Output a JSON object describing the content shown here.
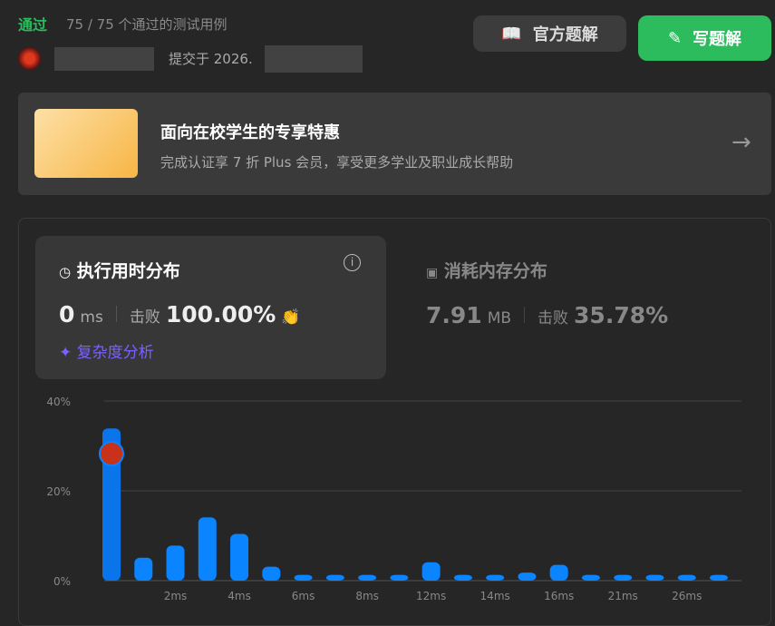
{
  "header": {
    "status": "通过",
    "cases": "75 / 75 个通过的测试用例",
    "submitted_prefix": "提交于 2026.",
    "official_solution": "官方题解",
    "write_solution": "写题解",
    "official_icon": "book-icon",
    "write_icon": "edit-icon"
  },
  "promo": {
    "title": "面向在校学生的专享特惠",
    "subtitle": "完成认证享 7 折 Plus 会员，享受更多学业及职业成长帮助",
    "icon": "arrow-right-icon"
  },
  "runtime": {
    "title": "执行用时分布",
    "value": "0",
    "unit": "ms",
    "beats_label": "击败",
    "beats": "100.00%",
    "complexity": "复杂度分析"
  },
  "memory": {
    "title": "消耗内存分布",
    "value": "7.91",
    "unit": "MB",
    "beats_label": "击败",
    "beats": "35.78%"
  },
  "colors": {
    "accent": "#2cbb5d",
    "bar": "#0a84ff",
    "complexity": "#7b61ff"
  },
  "chart_data": {
    "type": "bar",
    "y_ticks": [
      "0%",
      "20%",
      "40%"
    ],
    "ylim": [
      0,
      40
    ],
    "grid": true,
    "x_tick_labels": [
      "",
      "",
      "2ms",
      "",
      "4ms",
      "",
      "6ms",
      "",
      "8ms",
      "",
      "12ms",
      "",
      "14ms",
      "",
      "16ms",
      "",
      "21ms",
      "",
      "26ms",
      ""
    ],
    "values": [
      33.9,
      5.1,
      7.8,
      14.1,
      10.4,
      3.1,
      1.3,
      1.3,
      1.3,
      1.3,
      4.1,
      1.3,
      1.3,
      1.8,
      3.5,
      1.3,
      1.3,
      1.3,
      1.3,
      1.3
    ],
    "highlight_index": 0
  }
}
